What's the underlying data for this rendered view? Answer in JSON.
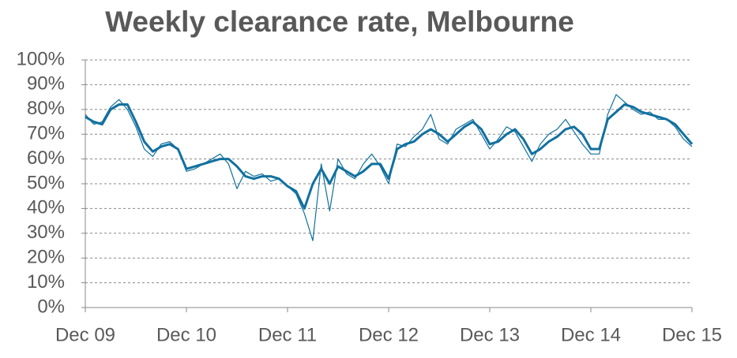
{
  "chart_data": {
    "type": "line",
    "title": "Weekly clearance rate, Melbourne",
    "x": [
      0,
      1,
      2,
      3,
      4,
      5,
      6,
      7,
      8,
      9,
      10,
      11,
      12,
      13,
      14,
      15,
      16,
      17,
      18,
      19,
      20,
      21,
      22,
      23,
      24,
      25,
      26,
      27,
      28,
      29,
      30,
      31,
      32,
      33,
      34,
      35,
      36,
      37,
      38,
      39,
      40,
      41,
      42,
      43,
      44,
      45,
      46,
      47,
      48,
      49,
      50,
      51,
      52,
      53,
      54,
      55,
      56,
      57,
      58,
      59,
      60,
      61,
      62,
      63,
      64,
      65,
      66,
      67,
      68,
      69,
      70,
      71,
      72
    ],
    "series": [
      {
        "color": "#11709f",
        "values": [
          78,
          74,
          75,
          81,
          84,
          80,
          73,
          64,
          61,
          66,
          67,
          64,
          55,
          56,
          58,
          60,
          62,
          58,
          48,
          55,
          53,
          54,
          51,
          52,
          49,
          46,
          38,
          27,
          58,
          39,
          60,
          54,
          52,
          58,
          62,
          57,
          50,
          66,
          65,
          69,
          72,
          78,
          68,
          66,
          72,
          74,
          76,
          70,
          64,
          68,
          73,
          71,
          65,
          59,
          66,
          70,
          72,
          76,
          71,
          66,
          62,
          62,
          78,
          86,
          83,
          80,
          78,
          79,
          76,
          76,
          73,
          68,
          65
        ]
      },
      {
        "color": "#11709f",
        "values": [
          77,
          75,
          74,
          80,
          82,
          82,
          75,
          67,
          63,
          65,
          66,
          64,
          56,
          57,
          58,
          59,
          60,
          60,
          57,
          53,
          52,
          53,
          53,
          52,
          49,
          47,
          40,
          50,
          56,
          50,
          57,
          55,
          53,
          55,
          58,
          58,
          52,
          64,
          66,
          67,
          70,
          72,
          70,
          67,
          70,
          73,
          75,
          72,
          66,
          67,
          70,
          72,
          68,
          62,
          64,
          67,
          69,
          72,
          73,
          70,
          64,
          64,
          76,
          79,
          82,
          81,
          79,
          78,
          77,
          76,
          74,
          70,
          66
        ]
      }
    ],
    "xlim": [
      0,
      72
    ],
    "xticks": [
      {
        "value": 0,
        "label": "Dec 09"
      },
      {
        "value": 12,
        "label": "Dec 10"
      },
      {
        "value": 24,
        "label": "Dec 11"
      },
      {
        "value": 36,
        "label": "Dec 12"
      },
      {
        "value": 48,
        "label": "Dec 13"
      },
      {
        "value": 60,
        "label": "Dec 14"
      },
      {
        "value": 72,
        "label": "Dec 15"
      }
    ],
    "ylim": [
      0,
      100
    ],
    "yticks": [
      {
        "value": 0,
        "label": "0%"
      },
      {
        "value": 10,
        "label": "10%"
      },
      {
        "value": 20,
        "label": "20%"
      },
      {
        "value": 30,
        "label": "30%"
      },
      {
        "value": 40,
        "label": "40%"
      },
      {
        "value": 50,
        "label": "50%"
      },
      {
        "value": 60,
        "label": "60%"
      },
      {
        "value": 70,
        "label": "70%"
      },
      {
        "value": 80,
        "label": "80%"
      },
      {
        "value": 90,
        "label": "90%"
      },
      {
        "value": 100,
        "label": "100%"
      }
    ],
    "grid": true
  }
}
